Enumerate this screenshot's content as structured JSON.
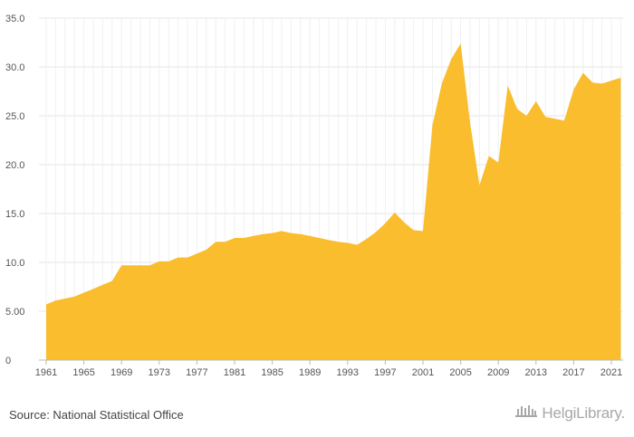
{
  "chart_data": {
    "type": "area",
    "title": "",
    "xlabel": "",
    "ylabel": "",
    "x": [
      1961,
      1962,
      1963,
      1964,
      1965,
      1966,
      1967,
      1968,
      1969,
      1970,
      1971,
      1972,
      1973,
      1974,
      1975,
      1976,
      1977,
      1978,
      1979,
      1980,
      1981,
      1982,
      1983,
      1984,
      1985,
      1986,
      1987,
      1988,
      1989,
      1990,
      1991,
      1992,
      1993,
      1994,
      1995,
      1996,
      1997,
      1998,
      1999,
      2000,
      2001,
      2002,
      2003,
      2004,
      2005,
      2006,
      2007,
      2008,
      2009,
      2010,
      2011,
      2012,
      2013,
      2014,
      2015,
      2016,
      2017,
      2018,
      2019,
      2020,
      2021,
      2022
    ],
    "series": [
      {
        "values": [
          5.7,
          6.1,
          6.3,
          6.5,
          6.9,
          7.3,
          7.7,
          8.1,
          9.7,
          9.7,
          9.7,
          9.7,
          10.1,
          10.1,
          10.5,
          10.5,
          10.9,
          11.3,
          12.1,
          12.1,
          12.5,
          12.5,
          12.7,
          12.9,
          13.0,
          13.2,
          13.0,
          12.9,
          12.7,
          12.5,
          12.3,
          12.1,
          12.0,
          11.8,
          12.4,
          13.1,
          14.0,
          15.1,
          14.1,
          13.3,
          13.2,
          24.0,
          28.3,
          30.8,
          32.4,
          24.3,
          17.9,
          20.9,
          20.2,
          28.1,
          25.7,
          25.0,
          26.5,
          24.9,
          24.7,
          24.5,
          27.7,
          29.4,
          28.4,
          28.3,
          28.6,
          28.9
        ]
      }
    ],
    "xticks": [
      "1961",
      "1965",
      "1969",
      "1973",
      "1977",
      "1981",
      "1985",
      "1989",
      "1993",
      "1997",
      "2001",
      "2005",
      "2009",
      "2013",
      "2017",
      "2021"
    ],
    "yticks": [
      "0",
      "5.00",
      "10.0",
      "15.0",
      "20.0",
      "25.0",
      "30.0",
      "35.0"
    ],
    "ylim": [
      0,
      35
    ],
    "grid": true,
    "colors": {
      "area": "#f9bd2e",
      "grid": "#e4e4e4",
      "axis": "#bbbbbb"
    }
  },
  "footer": {
    "source": "Source: National Statistical Office",
    "brand": "HelgiLibrary."
  }
}
